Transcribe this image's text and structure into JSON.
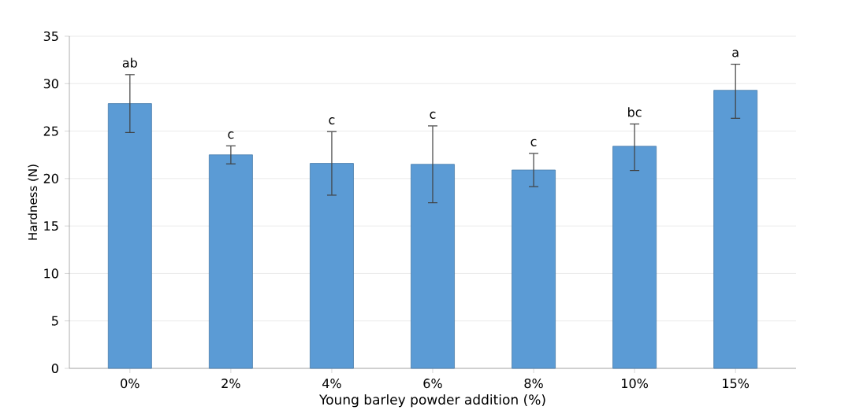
{
  "chart_data": {
    "type": "bar",
    "xlabel": "Young barley powder addition (%)",
    "ylabel": "Hardness (N)",
    "categories": [
      "0%",
      "2%",
      "4%",
      "6%",
      "8%",
      "10%",
      "15%"
    ],
    "values": [
      27.9,
      22.5,
      21.6,
      21.5,
      20.9,
      23.4,
      29.3
    ],
    "errors": [
      [
        24.8,
        31.0
      ],
      [
        21.5,
        23.5
      ],
      [
        18.2,
        25.0
      ],
      [
        17.4,
        25.6
      ],
      [
        19.1,
        22.7
      ],
      [
        20.8,
        25.8
      ],
      [
        26.3,
        32.1
      ]
    ],
    "color": "#5b9bd5",
    "ylim": [
      0,
      35
    ],
    "yticks": [
      0,
      5,
      10,
      15,
      20,
      25,
      30,
      35
    ],
    "grid": "y",
    "annotations": [
      {
        "text": "ab",
        "x": "0%",
        "y": 31.0
      },
      {
        "text": "c",
        "x": "2%",
        "y": 23.5
      },
      {
        "text": "c",
        "x": "4%",
        "y": 25.0
      },
      {
        "text": "c",
        "x": "6%",
        "y": 25.6
      },
      {
        "text": "c",
        "x": "8%",
        "y": 22.7
      },
      {
        "text": "bc",
        "x": "10%",
        "y": 25.8
      },
      {
        "text": "a",
        "x": "15%",
        "y": 32.1
      }
    ]
  }
}
